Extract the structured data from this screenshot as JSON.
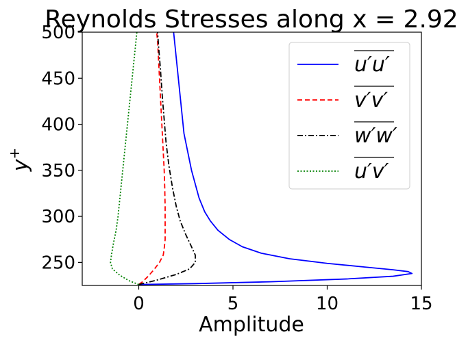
{
  "chart_data": {
    "type": "line",
    "title": "Reynolds Stresses along x = 2.92",
    "xlabel": "Amplitude",
    "ylabel": "y+",
    "xlim": [
      -3,
      15
    ],
    "ylim": [
      225,
      500
    ],
    "xticks": [
      0,
      5,
      10,
      15
    ],
    "yticks": [
      250,
      300,
      350,
      400,
      450,
      500
    ],
    "grid": false,
    "legend_position": "top-right",
    "series": [
      {
        "name": "u'u' (overbar)",
        "label_base": "u′u′",
        "color": "#0000ff",
        "style": "solid",
        "points": [
          [
            0,
            226
          ],
          [
            3,
            227
          ],
          [
            7,
            229
          ],
          [
            11,
            232
          ],
          [
            13.5,
            235
          ],
          [
            14.5,
            238
          ],
          [
            14.3,
            240
          ],
          [
            13.5,
            242
          ],
          [
            12.0,
            245
          ],
          [
            10.0,
            249
          ],
          [
            8.0,
            254
          ],
          [
            6.5,
            260
          ],
          [
            5.5,
            267
          ],
          [
            4.8,
            275
          ],
          [
            4.2,
            285
          ],
          [
            3.8,
            295
          ],
          [
            3.5,
            305
          ],
          [
            3.2,
            320
          ],
          [
            3.0,
            335
          ],
          [
            2.8,
            350
          ],
          [
            2.6,
            370
          ],
          [
            2.4,
            390
          ],
          [
            2.3,
            410
          ],
          [
            2.2,
            430
          ],
          [
            2.05,
            460
          ],
          [
            1.95,
            480
          ],
          [
            1.85,
            500
          ]
        ]
      },
      {
        "name": "v'v' (overbar)",
        "label_base": "v′v′",
        "color": "#ff0000",
        "style": "dashed",
        "points": [
          [
            0,
            226
          ],
          [
            0.2,
            229
          ],
          [
            0.5,
            235
          ],
          [
            0.8,
            242
          ],
          [
            1.1,
            250
          ],
          [
            1.3,
            258
          ],
          [
            1.35,
            265
          ],
          [
            1.4,
            275
          ],
          [
            1.4,
            290
          ],
          [
            1.4,
            310
          ],
          [
            1.38,
            330
          ],
          [
            1.35,
            350
          ],
          [
            1.3,
            370
          ],
          [
            1.25,
            390
          ],
          [
            1.2,
            410
          ],
          [
            1.15,
            430
          ],
          [
            1.1,
            450
          ],
          [
            1.05,
            470
          ],
          [
            1.0,
            490
          ],
          [
            0.95,
            500
          ]
        ]
      },
      {
        "name": "w'w' (overbar)",
        "label_base": "w′w′",
        "color": "#000000",
        "style": "dashdot",
        "points": [
          [
            0,
            226
          ],
          [
            1.0,
            231
          ],
          [
            2.0,
            237
          ],
          [
            2.7,
            243
          ],
          [
            3.0,
            250
          ],
          [
            3.0,
            258
          ],
          [
            2.8,
            267
          ],
          [
            2.5,
            280
          ],
          [
            2.2,
            295
          ],
          [
            2.0,
            310
          ],
          [
            1.8,
            330
          ],
          [
            1.6,
            355
          ],
          [
            1.45,
            380
          ],
          [
            1.35,
            405
          ],
          [
            1.25,
            430
          ],
          [
            1.15,
            460
          ],
          [
            1.05,
            485
          ],
          [
            1.0,
            500
          ]
        ]
      },
      {
        "name": "u'v' (overbar)",
        "label_base": "u′v′",
        "color": "#008000",
        "style": "dotted",
        "points": [
          [
            0,
            226
          ],
          [
            -0.5,
            230
          ],
          [
            -1.0,
            236
          ],
          [
            -1.4,
            243
          ],
          [
            -1.5,
            250
          ],
          [
            -1.45,
            258
          ],
          [
            -1.35,
            270
          ],
          [
            -1.2,
            285
          ],
          [
            -1.1,
            300
          ],
          [
            -1.0,
            320
          ],
          [
            -0.9,
            340
          ],
          [
            -0.8,
            360
          ],
          [
            -0.7,
            380
          ],
          [
            -0.6,
            400
          ],
          [
            -0.5,
            420
          ],
          [
            -0.4,
            440
          ],
          [
            -0.3,
            460
          ],
          [
            -0.2,
            480
          ],
          [
            -0.1,
            500
          ]
        ]
      }
    ]
  }
}
